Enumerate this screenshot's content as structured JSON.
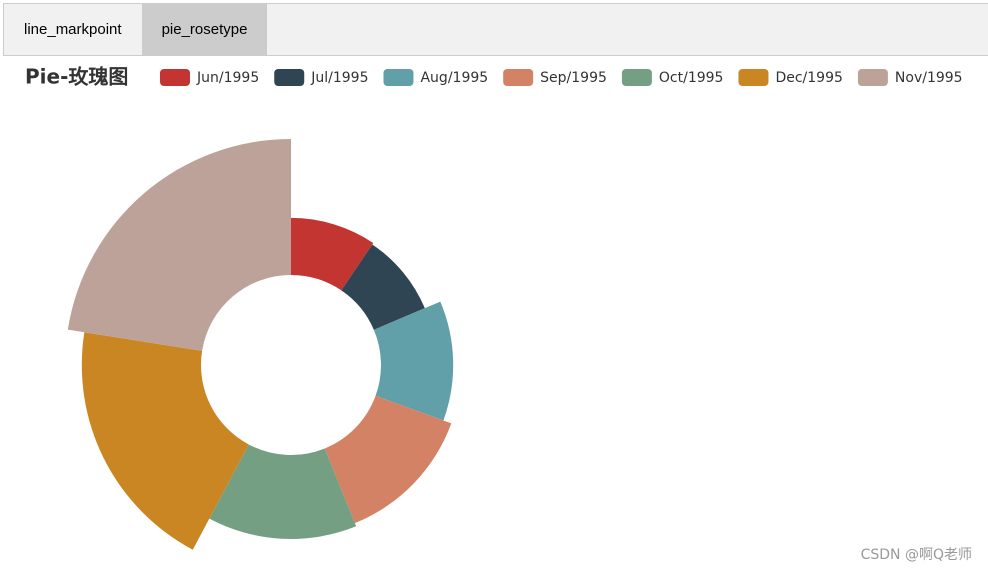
{
  "tabs": [
    "line_markpoint",
    "pie_rosetype"
  ],
  "active_tab": 1,
  "chart_data": {
    "type": "pie",
    "rose_type": "radius",
    "title": "Pie-玫瑰图",
    "categories": [
      "Jun/1995",
      "Jul/1995",
      "Aug/1995",
      "Sep/1995",
      "Oct/1995",
      "Dec/1995",
      "Nov/1995"
    ],
    "values": [
      34,
      33,
      43,
      48,
      50,
      71,
      81
    ],
    "colors": [
      "#c23531",
      "#2f4554",
      "#61a0a8",
      "#d48265",
      "#749f83",
      "#ca8622",
      "#bda29a"
    ]
  },
  "watermark": "CSDN @啊Q老师"
}
